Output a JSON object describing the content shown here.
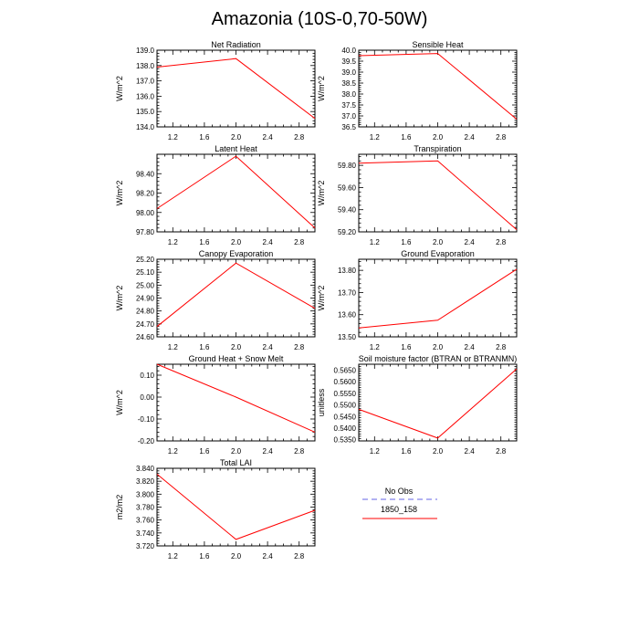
{
  "figure_title": "Amazonia (10S-0,70-50W)",
  "colors": {
    "series": "#ff0000",
    "obs": "#9999ee",
    "axis": "#000000"
  },
  "legend": {
    "entries": [
      {
        "label": "No Obs",
        "style": "dashed",
        "color": "#9999ee"
      },
      {
        "label": "1850_158",
        "style": "solid",
        "color": "#ff0000"
      }
    ]
  },
  "chart_data": [
    {
      "type": "line",
      "title": "Net Radiation",
      "ylabel": "W/m^2",
      "x": [
        1.0,
        2.0,
        3.0
      ],
      "y": [
        137.9,
        138.45,
        134.55
      ],
      "xlim": [
        1.0,
        3.0
      ],
      "ylim": [
        134.0,
        139.0
      ],
      "xticks": [
        1.2,
        1.6,
        2.0,
        2.4,
        2.8
      ],
      "xtick_labels": [
        "1.2",
        "1.6",
        "2.0",
        "2.4",
        "2.8"
      ],
      "yticks": [
        134,
        135,
        136,
        137,
        138,
        139
      ],
      "ytick_labels": [
        "134.0",
        "135.0",
        "136.0",
        "137.0",
        "138.0",
        "139.0"
      ]
    },
    {
      "type": "line",
      "title": "Sensible Heat",
      "ylabel": "W/m^2",
      "x": [
        1.0,
        2.0,
        3.0
      ],
      "y": [
        39.75,
        39.85,
        36.85
      ],
      "xlim": [
        1.0,
        3.0
      ],
      "ylim": [
        36.5,
        40.0
      ],
      "xticks": [
        1.2,
        1.6,
        2.0,
        2.4,
        2.8
      ],
      "xtick_labels": [
        "1.2",
        "1.6",
        "2.0",
        "2.4",
        "2.8"
      ],
      "yticks": [
        36.5,
        37.0,
        37.5,
        38.0,
        38.5,
        39.0,
        39.5,
        40.0
      ],
      "ytick_labels": [
        "36.5",
        "37.0",
        "37.5",
        "38.0",
        "38.5",
        "39.0",
        "39.5",
        "40.0"
      ]
    },
    {
      "type": "line",
      "title": "Latent Heat",
      "ylabel": "W/m^2",
      "x": [
        1.0,
        2.0,
        3.0
      ],
      "y": [
        98.04,
        98.58,
        97.84
      ],
      "xlim": [
        1.0,
        3.0
      ],
      "ylim": [
        97.8,
        98.6
      ],
      "xticks": [
        1.2,
        1.6,
        2.0,
        2.4,
        2.8
      ],
      "xtick_labels": [
        "1.2",
        "1.6",
        "2.0",
        "2.4",
        "2.8"
      ],
      "yticks": [
        97.8,
        98.0,
        98.2,
        98.4
      ],
      "ytick_labels": [
        "97.80",
        "98.00",
        "98.20",
        "98.40"
      ]
    },
    {
      "type": "line",
      "title": "Transpiration",
      "ylabel": "W/m^2",
      "x": [
        1.0,
        2.0,
        3.0
      ],
      "y": [
        59.82,
        59.84,
        59.22
      ],
      "xlim": [
        1.0,
        3.0
      ],
      "ylim": [
        59.2,
        59.9
      ],
      "xticks": [
        1.2,
        1.6,
        2.0,
        2.4,
        2.8
      ],
      "xtick_labels": [
        "1.2",
        "1.6",
        "2.0",
        "2.4",
        "2.8"
      ],
      "yticks": [
        59.2,
        59.4,
        59.6,
        59.8
      ],
      "ytick_labels": [
        "59.20",
        "59.40",
        "59.60",
        "59.80"
      ]
    },
    {
      "type": "line",
      "title": "Canopy Evaporation",
      "ylabel": "W/m^2",
      "x": [
        1.0,
        2.0,
        3.0
      ],
      "y": [
        24.68,
        25.17,
        24.82
      ],
      "xlim": [
        1.0,
        3.0
      ],
      "ylim": [
        24.6,
        25.2
      ],
      "xticks": [
        1.2,
        1.6,
        2.0,
        2.4,
        2.8
      ],
      "xtick_labels": [
        "1.2",
        "1.6",
        "2.0",
        "2.4",
        "2.8"
      ],
      "yticks": [
        24.6,
        24.7,
        24.8,
        24.9,
        25.0,
        25.1,
        25.2
      ],
      "ytick_labels": [
        "24.60",
        "24.70",
        "24.80",
        "24.90",
        "25.00",
        "25.10",
        "25.20"
      ]
    },
    {
      "type": "line",
      "title": "Ground Evaporation",
      "ylabel": "W/m^2",
      "x": [
        1.0,
        2.0,
        3.0
      ],
      "y": [
        13.54,
        13.575,
        13.805
      ],
      "xlim": [
        1.0,
        3.0
      ],
      "ylim": [
        13.5,
        13.85
      ],
      "xticks": [
        1.2,
        1.6,
        2.0,
        2.4,
        2.8
      ],
      "xtick_labels": [
        "1.2",
        "1.6",
        "2.0",
        "2.4",
        "2.8"
      ],
      "yticks": [
        13.5,
        13.6,
        13.7,
        13.8
      ],
      "ytick_labels": [
        "13.50",
        "13.60",
        "13.70",
        "13.80"
      ]
    },
    {
      "type": "line",
      "title": "Ground Heat + Snow Melt",
      "ylabel": "W/m^2",
      "x": [
        1.0,
        2.0,
        3.0
      ],
      "y": [
        0.15,
        0.0,
        -0.16
      ],
      "xlim": [
        1.0,
        3.0
      ],
      "ylim": [
        -0.2,
        0.15
      ],
      "xticks": [
        1.2,
        1.6,
        2.0,
        2.4,
        2.8
      ],
      "xtick_labels": [
        "1.2",
        "1.6",
        "2.0",
        "2.4",
        "2.8"
      ],
      "yticks": [
        -0.2,
        -0.1,
        0.0,
        0.1
      ],
      "ytick_labels": [
        "-0.20",
        "-0.10",
        "0.00",
        "0.10"
      ]
    },
    {
      "type": "line",
      "title": "Soil moisture factor (BTRAN or BTRANMN)",
      "ylabel": "unitless",
      "x": [
        1.0,
        2.0,
        3.0
      ],
      "y": [
        0.5481,
        0.5357,
        0.5655
      ],
      "xlim": [
        1.0,
        3.0
      ],
      "ylim": [
        0.5345,
        0.5675
      ],
      "xticks": [
        1.2,
        1.6,
        2.0,
        2.4,
        2.8
      ],
      "xtick_labels": [
        "1.2",
        "1.6",
        "2.0",
        "2.4",
        "2.8"
      ],
      "yticks": [
        0.535,
        0.54,
        0.545,
        0.55,
        0.555,
        0.56,
        0.565
      ],
      "ytick_labels": [
        "0.5350",
        "0.5400",
        "0.5450",
        "0.5500",
        "0.5550",
        "0.5600",
        "0.5650"
      ]
    },
    {
      "type": "line",
      "title": "Total LAI",
      "ylabel": "m2/m2",
      "x": [
        1.0,
        2.0,
        3.0
      ],
      "y": [
        3.831,
        3.73,
        3.775
      ],
      "xlim": [
        1.0,
        3.0
      ],
      "ylim": [
        3.72,
        3.84
      ],
      "xticks": [
        1.2,
        1.6,
        2.0,
        2.4,
        2.8
      ],
      "xtick_labels": [
        "1.2",
        "1.6",
        "2.0",
        "2.4",
        "2.8"
      ],
      "yticks": [
        3.72,
        3.74,
        3.76,
        3.78,
        3.8,
        3.82,
        3.84
      ],
      "ytick_labels": [
        "3.720",
        "3.740",
        "3.760",
        "3.780",
        "3.800",
        "3.820",
        "3.840"
      ]
    }
  ]
}
